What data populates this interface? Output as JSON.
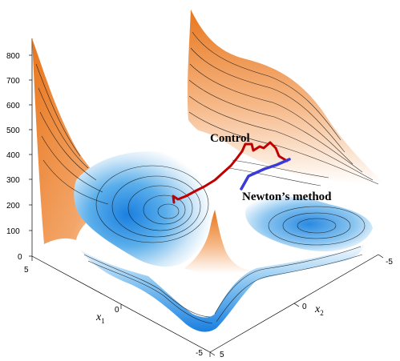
{
  "chart_data": {
    "type": "surface",
    "title": "",
    "zlim": [
      0,
      800
    ],
    "z_ticks": [
      "0",
      "100",
      "200",
      "300",
      "400",
      "500",
      "600",
      "700",
      "800"
    ],
    "x1_ticks": [
      "5",
      "0",
      "-5"
    ],
    "x2_ticks": [
      "-5",
      "0",
      "5"
    ],
    "x1_label": "x",
    "x1_sub": "1",
    "x2_label": "x",
    "x2_sub": "2",
    "grid": false,
    "colormap": [
      "#1a7fe0",
      "#ffffff",
      "#e8761c"
    ],
    "series": [
      {
        "name": "Control",
        "color": "#c00000"
      },
      {
        "name": "Newton’s method",
        "color": "#3a3ad6"
      }
    ],
    "annotations": {
      "control": "Control",
      "newton": "Newton’s method"
    }
  }
}
